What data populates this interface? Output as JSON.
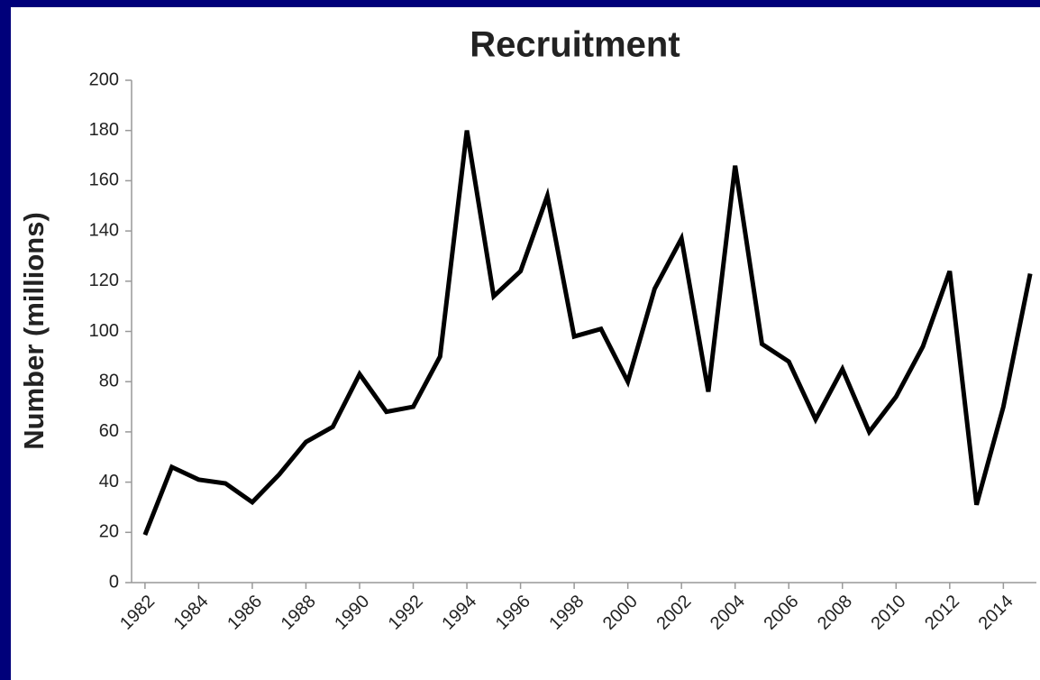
{
  "chart_data": {
    "type": "line",
    "title": "Recruitment",
    "y_label": "Number (millions)",
    "x": [
      1982,
      1983,
      1984,
      1985,
      1986,
      1987,
      1988,
      1989,
      1990,
      1991,
      1992,
      1993,
      1994,
      1995,
      1996,
      1997,
      1998,
      1999,
      2000,
      2001,
      2002,
      2003,
      2004,
      2005,
      2006,
      2007,
      2008,
      2009,
      2010,
      2011,
      2012,
      2013,
      2014,
      2015
    ],
    "values": [
      19,
      46,
      41,
      39.5,
      32,
      43,
      56,
      62,
      83,
      68,
      70,
      90,
      180,
      114,
      124,
      154,
      98,
      101,
      80,
      117,
      137,
      76,
      166,
      95,
      88,
      65,
      85,
      60,
      74,
      94,
      124,
      31,
      70,
      123
    ],
    "color": "#000000",
    "xlim": [
      1981.5,
      2015.5
    ],
    "xticks": [
      1982,
      1984,
      1986,
      1988,
      1990,
      1992,
      1994,
      1996,
      1998,
      2000,
      2002,
      2004,
      2006,
      2008,
      2010,
      2012,
      2014
    ],
    "ylim": [
      0,
      200
    ],
    "yticks": [
      0,
      20,
      40,
      60,
      80,
      100,
      120,
      140,
      160,
      180,
      200
    ],
    "grid": false
  }
}
